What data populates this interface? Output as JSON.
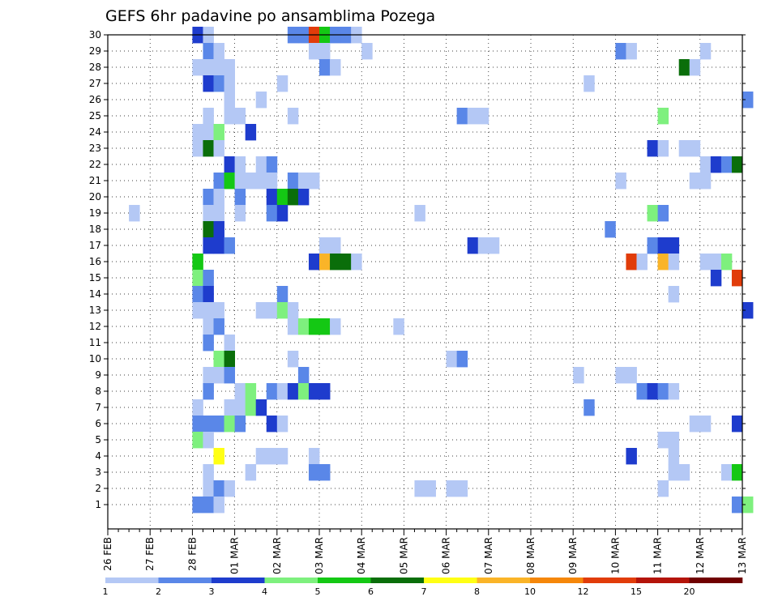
{
  "chart_data": {
    "type": "heatmap",
    "title": "GEFS 6hr padavine po ansamblima Pozega",
    "xlabel": "",
    "ylabel": "",
    "x_tick_labels": [
      "26 FEB",
      "27 FEB",
      "28 FEB",
      "01 MAR",
      "02 MAR",
      "03 MAR",
      "04 MAR",
      "05 MAR",
      "06 MAR",
      "07 MAR",
      "08 MAR",
      "09 MAR",
      "10 MAR",
      "11 MAR",
      "12 MAR",
      "13 MAR"
    ],
    "y_tick_labels": [
      "1",
      "2",
      "3",
      "4",
      "5",
      "6",
      "7",
      "8",
      "9",
      "10",
      "11",
      "12",
      "13",
      "14",
      "15",
      "16",
      "17",
      "18",
      "19",
      "20",
      "21",
      "22",
      "23",
      "24",
      "25",
      "26",
      "27",
      "28",
      "29",
      "30"
    ],
    "time_steps_per_day": 4,
    "grid": "dotted",
    "colorbar": {
      "boundaries": [
        "1",
        "2",
        "3",
        "4",
        "5",
        "6",
        "7",
        "8",
        "10",
        "12",
        "15",
        "20"
      ],
      "colors": [
        "#b4c8f5",
        "#5a87e8",
        "#1e3ccd",
        "#7ef07e",
        "#14c814",
        "#0a6e0a",
        "#ffff14",
        "#fab428",
        "#f5870a",
        "#e13c0a",
        "#b4140a",
        "#700000"
      ]
    },
    "cells": [
      {
        "m": 30,
        "t": 8,
        "c": 2
      },
      {
        "m": 30,
        "t": 9,
        "c": 0
      },
      {
        "m": 30,
        "t": 17,
        "c": 1
      },
      {
        "m": 30,
        "t": 18,
        "c": 1
      },
      {
        "m": 30,
        "t": 19,
        "c": 9
      },
      {
        "m": 30,
        "t": 20,
        "c": 4
      },
      {
        "m": 30,
        "t": 21,
        "c": 1
      },
      {
        "m": 30,
        "t": 22,
        "c": 1
      },
      {
        "m": 30,
        "t": 23,
        "c": 0
      },
      {
        "m": 29,
        "t": 9,
        "c": 1
      },
      {
        "m": 29,
        "t": 10,
        "c": 0
      },
      {
        "m": 29,
        "t": 19,
        "c": 0
      },
      {
        "m": 29,
        "t": 20,
        "c": 0
      },
      {
        "m": 29,
        "t": 24,
        "c": 0
      },
      {
        "m": 29,
        "t": 48,
        "c": 1
      },
      {
        "m": 29,
        "t": 49,
        "c": 0
      },
      {
        "m": 29,
        "t": 56,
        "c": 0
      },
      {
        "m": 28,
        "t": 8,
        "c": 0
      },
      {
        "m": 28,
        "t": 9,
        "c": 0
      },
      {
        "m": 28,
        "t": 10,
        "c": 0
      },
      {
        "m": 28,
        "t": 11,
        "c": 0
      },
      {
        "m": 28,
        "t": 20,
        "c": 1
      },
      {
        "m": 28,
        "t": 21,
        "c": 0
      },
      {
        "m": 28,
        "t": 54,
        "c": 5
      },
      {
        "m": 28,
        "t": 55,
        "c": 0
      },
      {
        "m": 27,
        "t": 9,
        "c": 2
      },
      {
        "m": 27,
        "t": 10,
        "c": 1
      },
      {
        "m": 27,
        "t": 11,
        "c": 0
      },
      {
        "m": 27,
        "t": 16,
        "c": 0
      },
      {
        "m": 27,
        "t": 45,
        "c": 0
      },
      {
        "m": 26,
        "t": 11,
        "c": 0
      },
      {
        "m": 26,
        "t": 14,
        "c": 0
      },
      {
        "m": 26,
        "t": 60,
        "c": 1
      },
      {
        "m": 25,
        "t": 9,
        "c": 0
      },
      {
        "m": 25,
        "t": 11,
        "c": 0
      },
      {
        "m": 25,
        "t": 12,
        "c": 0
      },
      {
        "m": 25,
        "t": 17,
        "c": 0
      },
      {
        "m": 25,
        "t": 33,
        "c": 1
      },
      {
        "m": 25,
        "t": 34,
        "c": 0
      },
      {
        "m": 25,
        "t": 35,
        "c": 0
      },
      {
        "m": 25,
        "t": 52,
        "c": 3
      },
      {
        "m": 24,
        "t": 8,
        "c": 0
      },
      {
        "m": 24,
        "t": 9,
        "c": 0
      },
      {
        "m": 24,
        "t": 10,
        "c": 3
      },
      {
        "m": 24,
        "t": 13,
        "c": 2
      },
      {
        "m": 23,
        "t": 8,
        "c": 0
      },
      {
        "m": 23,
        "t": 9,
        "c": 5
      },
      {
        "m": 23,
        "t": 10,
        "c": 0
      },
      {
        "m": 23,
        "t": 51,
        "c": 2
      },
      {
        "m": 23,
        "t": 52,
        "c": 0
      },
      {
        "m": 23,
        "t": 54,
        "c": 0
      },
      {
        "m": 23,
        "t": 55,
        "c": 0
      },
      {
        "m": 22,
        "t": 11,
        "c": 2
      },
      {
        "m": 22,
        "t": 12,
        "c": 0
      },
      {
        "m": 22,
        "t": 14,
        "c": 0
      },
      {
        "m": 22,
        "t": 15,
        "c": 1
      },
      {
        "m": 22,
        "t": 56,
        "c": 0
      },
      {
        "m": 22,
        "t": 57,
        "c": 2
      },
      {
        "m": 22,
        "t": 58,
        "c": 1
      },
      {
        "m": 22,
        "t": 59,
        "c": 5
      },
      {
        "m": 21,
        "t": 10,
        "c": 1
      },
      {
        "m": 21,
        "t": 11,
        "c": 4
      },
      {
        "m": 21,
        "t": 12,
        "c": 0
      },
      {
        "m": 21,
        "t": 13,
        "c": 0
      },
      {
        "m": 21,
        "t": 14,
        "c": 0
      },
      {
        "m": 21,
        "t": 15,
        "c": 0
      },
      {
        "m": 21,
        "t": 17,
        "c": 1
      },
      {
        "m": 21,
        "t": 18,
        "c": 0
      },
      {
        "m": 21,
        "t": 19,
        "c": 0
      },
      {
        "m": 21,
        "t": 48,
        "c": 0
      },
      {
        "m": 21,
        "t": 55,
        "c": 0
      },
      {
        "m": 21,
        "t": 56,
        "c": 0
      },
      {
        "m": 20,
        "t": 9,
        "c": 1
      },
      {
        "m": 20,
        "t": 10,
        "c": 0
      },
      {
        "m": 20,
        "t": 12,
        "c": 1
      },
      {
        "m": 20,
        "t": 15,
        "c": 2
      },
      {
        "m": 20,
        "t": 16,
        "c": 4
      },
      {
        "m": 20,
        "t": 17,
        "c": 5
      },
      {
        "m": 20,
        "t": 18,
        "c": 2
      },
      {
        "m": 19,
        "t": 2,
        "c": 0
      },
      {
        "m": 19,
        "t": 9,
        "c": 0
      },
      {
        "m": 19,
        "t": 10,
        "c": 0
      },
      {
        "m": 19,
        "t": 12,
        "c": 0
      },
      {
        "m": 19,
        "t": 15,
        "c": 1
      },
      {
        "m": 19,
        "t": 16,
        "c": 2
      },
      {
        "m": 19,
        "t": 29,
        "c": 0
      },
      {
        "m": 19,
        "t": 51,
        "c": 3
      },
      {
        "m": 19,
        "t": 52,
        "c": 1
      },
      {
        "m": 18,
        "t": 9,
        "c": 5
      },
      {
        "m": 18,
        "t": 10,
        "c": 2
      },
      {
        "m": 18,
        "t": 47,
        "c": 1
      },
      {
        "m": 17,
        "t": 9,
        "c": 2
      },
      {
        "m": 17,
        "t": 10,
        "c": 2
      },
      {
        "m": 17,
        "t": 11,
        "c": 1
      },
      {
        "m": 17,
        "t": 20,
        "c": 0
      },
      {
        "m": 17,
        "t": 21,
        "c": 0
      },
      {
        "m": 17,
        "t": 34,
        "c": 2
      },
      {
        "m": 17,
        "t": 35,
        "c": 0
      },
      {
        "m": 17,
        "t": 36,
        "c": 0
      },
      {
        "m": 17,
        "t": 51,
        "c": 1
      },
      {
        "m": 17,
        "t": 52,
        "c": 2
      },
      {
        "m": 17,
        "t": 53,
        "c": 2
      },
      {
        "m": 16,
        "t": 8,
        "c": 4
      },
      {
        "m": 16,
        "t": 19,
        "c": 2
      },
      {
        "m": 16,
        "t": 20,
        "c": 7
      },
      {
        "m": 16,
        "t": 21,
        "c": 5
      },
      {
        "m": 16,
        "t": 22,
        "c": 5
      },
      {
        "m": 16,
        "t": 23,
        "c": 0
      },
      {
        "m": 16,
        "t": 49,
        "c": 9
      },
      {
        "m": 16,
        "t": 50,
        "c": 0
      },
      {
        "m": 16,
        "t": 52,
        "c": 7
      },
      {
        "m": 16,
        "t": 53,
        "c": 0
      },
      {
        "m": 16,
        "t": 56,
        "c": 0
      },
      {
        "m": 16,
        "t": 57,
        "c": 0
      },
      {
        "m": 16,
        "t": 58,
        "c": 3
      },
      {
        "m": 15,
        "t": 8,
        "c": 3
      },
      {
        "m": 15,
        "t": 9,
        "c": 1
      },
      {
        "m": 15,
        "t": 57,
        "c": 2
      },
      {
        "m": 15,
        "t": 59,
        "c": 9
      },
      {
        "m": 14,
        "t": 8,
        "c": 1
      },
      {
        "m": 14,
        "t": 9,
        "c": 2
      },
      {
        "m": 14,
        "t": 16,
        "c": 1
      },
      {
        "m": 14,
        "t": 53,
        "c": 0
      },
      {
        "m": 13,
        "t": 8,
        "c": 0
      },
      {
        "m": 13,
        "t": 9,
        "c": 0
      },
      {
        "m": 13,
        "t": 10,
        "c": 0
      },
      {
        "m": 13,
        "t": 14,
        "c": 0
      },
      {
        "m": 13,
        "t": 15,
        "c": 0
      },
      {
        "m": 13,
        "t": 16,
        "c": 3
      },
      {
        "m": 13,
        "t": 17,
        "c": 0
      },
      {
        "m": 13,
        "t": 60,
        "c": 2
      },
      {
        "m": 12,
        "t": 9,
        "c": 0
      },
      {
        "m": 12,
        "t": 10,
        "c": 1
      },
      {
        "m": 12,
        "t": 17,
        "c": 0
      },
      {
        "m": 12,
        "t": 18,
        "c": 3
      },
      {
        "m": 12,
        "t": 19,
        "c": 4
      },
      {
        "m": 12,
        "t": 20,
        "c": 4
      },
      {
        "m": 12,
        "t": 21,
        "c": 0
      },
      {
        "m": 12,
        "t": 27,
        "c": 0
      },
      {
        "m": 11,
        "t": 9,
        "c": 1
      },
      {
        "m": 11,
        "t": 11,
        "c": 0
      },
      {
        "m": 10,
        "t": 10,
        "c": 3
      },
      {
        "m": 10,
        "t": 11,
        "c": 5
      },
      {
        "m": 10,
        "t": 17,
        "c": 0
      },
      {
        "m": 10,
        "t": 32,
        "c": 0
      },
      {
        "m": 10,
        "t": 33,
        "c": 1
      },
      {
        "m": 9,
        "t": 9,
        "c": 0
      },
      {
        "m": 9,
        "t": 10,
        "c": 0
      },
      {
        "m": 9,
        "t": 11,
        "c": 1
      },
      {
        "m": 9,
        "t": 18,
        "c": 1
      },
      {
        "m": 9,
        "t": 44,
        "c": 0
      },
      {
        "m": 9,
        "t": 48,
        "c": 0
      },
      {
        "m": 9,
        "t": 49,
        "c": 0
      },
      {
        "m": 8,
        "t": 9,
        "c": 1
      },
      {
        "m": 8,
        "t": 12,
        "c": 0
      },
      {
        "m": 8,
        "t": 13,
        "c": 3
      },
      {
        "m": 8,
        "t": 15,
        "c": 1
      },
      {
        "m": 8,
        "t": 16,
        "c": 0
      },
      {
        "m": 8,
        "t": 17,
        "c": 2
      },
      {
        "m": 8,
        "t": 18,
        "c": 3
      },
      {
        "m": 8,
        "t": 19,
        "c": 2
      },
      {
        "m": 8,
        "t": 20,
        "c": 2
      },
      {
        "m": 8,
        "t": 50,
        "c": 1
      },
      {
        "m": 8,
        "t": 51,
        "c": 2
      },
      {
        "m": 8,
        "t": 52,
        "c": 1
      },
      {
        "m": 8,
        "t": 53,
        "c": 0
      },
      {
        "m": 7,
        "t": 8,
        "c": 0
      },
      {
        "m": 7,
        "t": 11,
        "c": 0
      },
      {
        "m": 7,
        "t": 12,
        "c": 0
      },
      {
        "m": 7,
        "t": 13,
        "c": 3
      },
      {
        "m": 7,
        "t": 14,
        "c": 2
      },
      {
        "m": 7,
        "t": 45,
        "c": 1
      },
      {
        "m": 6,
        "t": 8,
        "c": 1
      },
      {
        "m": 6,
        "t": 9,
        "c": 1
      },
      {
        "m": 6,
        "t": 10,
        "c": 1
      },
      {
        "m": 6,
        "t": 11,
        "c": 3
      },
      {
        "m": 6,
        "t": 12,
        "c": 1
      },
      {
        "m": 6,
        "t": 15,
        "c": 2
      },
      {
        "m": 6,
        "t": 16,
        "c": 0
      },
      {
        "m": 6,
        "t": 55,
        "c": 0
      },
      {
        "m": 6,
        "t": 56,
        "c": 0
      },
      {
        "m": 6,
        "t": 59,
        "c": 2
      },
      {
        "m": 5,
        "t": 8,
        "c": 3
      },
      {
        "m": 5,
        "t": 9,
        "c": 0
      },
      {
        "m": 5,
        "t": 52,
        "c": 0
      },
      {
        "m": 5,
        "t": 53,
        "c": 0
      },
      {
        "m": 4,
        "t": 10,
        "c": 6
      },
      {
        "m": 4,
        "t": 14,
        "c": 0
      },
      {
        "m": 4,
        "t": 15,
        "c": 0
      },
      {
        "m": 4,
        "t": 16,
        "c": 0
      },
      {
        "m": 4,
        "t": 19,
        "c": 0
      },
      {
        "m": 4,
        "t": 49,
        "c": 2
      },
      {
        "m": 4,
        "t": 53,
        "c": 0
      },
      {
        "m": 3,
        "t": 9,
        "c": 0
      },
      {
        "m": 3,
        "t": 13,
        "c": 0
      },
      {
        "m": 3,
        "t": 19,
        "c": 1
      },
      {
        "m": 3,
        "t": 20,
        "c": 1
      },
      {
        "m": 3,
        "t": 53,
        "c": 0
      },
      {
        "m": 3,
        "t": 54,
        "c": 0
      },
      {
        "m": 3,
        "t": 58,
        "c": 0
      },
      {
        "m": 3,
        "t": 59,
        "c": 4
      },
      {
        "m": 2,
        "t": 9,
        "c": 0
      },
      {
        "m": 2,
        "t": 10,
        "c": 1
      },
      {
        "m": 2,
        "t": 11,
        "c": 0
      },
      {
        "m": 2,
        "t": 29,
        "c": 0
      },
      {
        "m": 2,
        "t": 30,
        "c": 0
      },
      {
        "m": 2,
        "t": 32,
        "c": 0
      },
      {
        "m": 2,
        "t": 33,
        "c": 0
      },
      {
        "m": 2,
        "t": 52,
        "c": 0
      },
      {
        "m": 1,
        "t": 8,
        "c": 1
      },
      {
        "m": 1,
        "t": 9,
        "c": 1
      },
      {
        "m": 1,
        "t": 10,
        "c": 0
      },
      {
        "m": 1,
        "t": 59,
        "c": 1
      },
      {
        "m": 1,
        "t": 60,
        "c": 3
      }
    ]
  }
}
